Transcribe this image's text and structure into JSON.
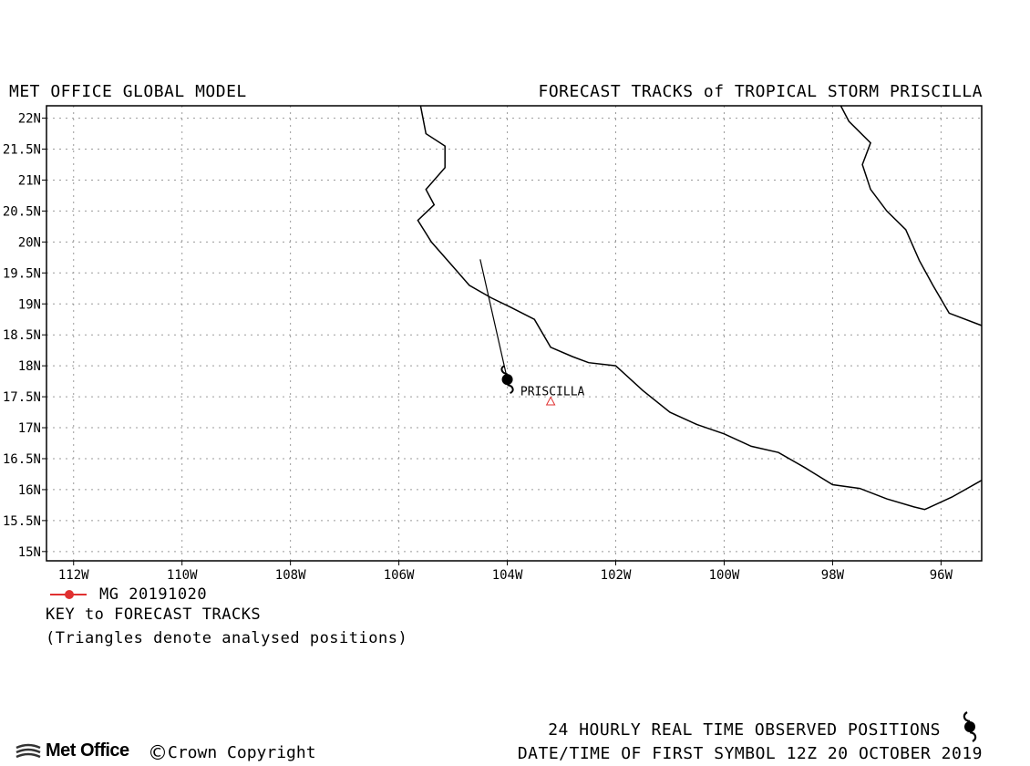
{
  "header": {
    "left": "MET OFFICE GLOBAL MODEL",
    "right": "FORECAST TRACKS of TROPICAL STORM PRISCILLA"
  },
  "map": {
    "lon_range": [
      -112.5,
      -95.25
    ],
    "lat_range": [
      14.85,
      22.2
    ],
    "grid": "dotted",
    "lon_ticks": [
      {
        "value": -112,
        "label": "112W"
      },
      {
        "value": -110,
        "label": "110W"
      },
      {
        "value": -108,
        "label": "108W"
      },
      {
        "value": -106,
        "label": "106W"
      },
      {
        "value": -104,
        "label": "104W"
      },
      {
        "value": -102,
        "label": "102W"
      },
      {
        "value": -100,
        "label": "100W"
      },
      {
        "value": -98,
        "label": "98W"
      },
      {
        "value": -96,
        "label": "96W"
      }
    ],
    "lat_ticks": [
      {
        "value": 22,
        "label": "22N"
      },
      {
        "value": 21.5,
        "label": "21.5N"
      },
      {
        "value": 21,
        "label": "21N"
      },
      {
        "value": 20.5,
        "label": "20.5N"
      },
      {
        "value": 20,
        "label": "20N"
      },
      {
        "value": 19.5,
        "label": "19.5N"
      },
      {
        "value": 19,
        "label": "19N"
      },
      {
        "value": 18.5,
        "label": "18.5N"
      },
      {
        "value": 18,
        "label": "18N"
      },
      {
        "value": 17.5,
        "label": "17.5N"
      },
      {
        "value": 17,
        "label": "17N"
      },
      {
        "value": 16.5,
        "label": "16.5N"
      },
      {
        "value": 16,
        "label": "16N"
      },
      {
        "value": 15.5,
        "label": "15.5N"
      },
      {
        "value": 15,
        "label": "15N"
      }
    ],
    "coastline_west": [
      [
        -105.6,
        22.2
      ],
      [
        -105.5,
        21.75
      ],
      [
        -105.15,
        21.55
      ],
      [
        -105.15,
        21.2
      ],
      [
        -105.5,
        20.85
      ],
      [
        -105.35,
        20.6
      ],
      [
        -105.65,
        20.35
      ],
      [
        -105.4,
        20.0
      ],
      [
        -105.0,
        19.6
      ],
      [
        -104.7,
        19.3
      ],
      [
        -104.3,
        19.1
      ],
      [
        -103.95,
        18.95
      ],
      [
        -103.5,
        18.75
      ],
      [
        -103.2,
        18.3
      ],
      [
        -102.8,
        18.15
      ],
      [
        -102.5,
        18.05
      ],
      [
        -102.0,
        18.0
      ],
      [
        -101.5,
        17.6
      ],
      [
        -101.0,
        17.25
      ],
      [
        -100.5,
        17.05
      ],
      [
        -100.0,
        16.9
      ],
      [
        -99.5,
        16.7
      ],
      [
        -99.0,
        16.6
      ],
      [
        -98.5,
        16.35
      ],
      [
        -98.0,
        16.08
      ],
      [
        -97.5,
        16.02
      ],
      [
        -97.0,
        15.85
      ],
      [
        -96.5,
        15.72
      ],
      [
        -96.3,
        15.68
      ],
      [
        -95.8,
        15.88
      ],
      [
        -95.25,
        16.15
      ]
    ],
    "coastline_east": [
      [
        -97.85,
        22.2
      ],
      [
        -97.7,
        21.95
      ],
      [
        -97.3,
        21.6
      ],
      [
        -97.45,
        21.25
      ],
      [
        -97.3,
        20.85
      ],
      [
        -97.0,
        20.5
      ],
      [
        -96.65,
        20.2
      ],
      [
        -96.4,
        19.7
      ],
      [
        -96.15,
        19.3
      ],
      [
        -95.85,
        18.85
      ],
      [
        -95.25,
        18.65
      ]
    ],
    "analysed_positions": [
      {
        "label": "PRISCILLA",
        "lon": -103.2,
        "lat": 17.42
      }
    ],
    "observed_symbol": {
      "lon": -104.0,
      "lat": 17.78
    }
  },
  "tracks": [
    {
      "name": "MG 20191020",
      "color": "#e03030",
      "points": [
        [
          -104.0,
          17.78
        ],
        [
          -104.5,
          19.72
        ]
      ]
    }
  ],
  "legend": {
    "entry_label": "MG 20191020",
    "key_title": "KEY to FORECAST TRACKS",
    "note": "(Triangles denote analysed positions)"
  },
  "footer": {
    "observed": "24 HOURLY REAL TIME OBSERVED POSITIONS",
    "first_symbol": "DATE/TIME OF FIRST SYMBOL 12Z 20 OCTOBER 2019",
    "logo": "Met Office",
    "copyright_symbol": "©",
    "copyright": "Crown Copyright"
  }
}
